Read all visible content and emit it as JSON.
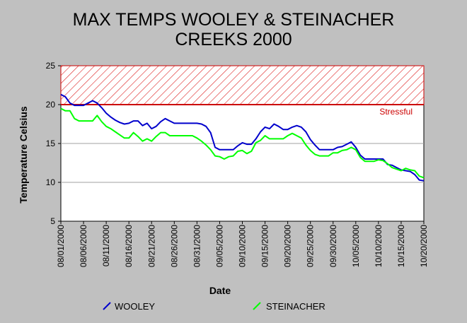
{
  "chart_data": {
    "type": "line",
    "title_lines": [
      "MAX TEMPS WOOLEY & STEINACHER",
      "CREEKS 2000"
    ],
    "xlabel": "Date",
    "ylabel": "Temperature Celsius",
    "ylim": [
      5,
      25
    ],
    "yticks": [
      "5",
      "10",
      "15",
      "20",
      "25"
    ],
    "xticks": [
      "08/01/2000",
      "08/06/2000",
      "08/11/2000",
      "08/16/2000",
      "08/21/2000",
      "08/26/2000",
      "08/31/2000",
      "09/05/2000",
      "09/10/2000",
      "09/15/2000",
      "09/20/2000",
      "09/25/2000",
      "09/30/2000",
      "10/05/2000",
      "10/10/2000",
      "10/15/2000",
      "10/20/2000"
    ],
    "x_start": "08/01/2000",
    "x_end": "10/20/2000",
    "grid": "horizontal",
    "threshold": {
      "label": "Stressful",
      "from": 20,
      "to": 25,
      "color": "#cc0000"
    },
    "x_dates": [
      "08/01/2000",
      "08/02/2000",
      "08/03/2000",
      "08/04/2000",
      "08/05/2000",
      "08/06/2000",
      "08/07/2000",
      "08/08/2000",
      "08/09/2000",
      "08/10/2000",
      "08/11/2000",
      "08/12/2000",
      "08/13/2000",
      "08/14/2000",
      "08/15/2000",
      "08/16/2000",
      "08/17/2000",
      "08/18/2000",
      "08/19/2000",
      "08/20/2000",
      "08/21/2000",
      "08/22/2000",
      "08/23/2000",
      "08/24/2000",
      "08/25/2000",
      "08/26/2000",
      "08/27/2000",
      "08/28/2000",
      "08/29/2000",
      "08/30/2000",
      "08/31/2000",
      "09/01/2000",
      "09/02/2000",
      "09/03/2000",
      "09/04/2000",
      "09/05/2000",
      "09/06/2000",
      "09/07/2000",
      "09/08/2000",
      "09/09/2000",
      "09/10/2000",
      "09/11/2000",
      "09/12/2000",
      "09/13/2000",
      "09/14/2000",
      "09/15/2000",
      "09/16/2000",
      "09/17/2000",
      "09/18/2000",
      "09/19/2000",
      "09/20/2000",
      "09/21/2000",
      "09/22/2000",
      "09/23/2000",
      "09/24/2000",
      "09/25/2000",
      "09/26/2000",
      "09/27/2000",
      "09/28/2000",
      "09/29/2000",
      "09/30/2000",
      "10/01/2000",
      "10/02/2000",
      "10/03/2000",
      "10/04/2000",
      "10/05/2000",
      "10/06/2000",
      "10/07/2000",
      "10/08/2000",
      "10/09/2000",
      "10/10/2000",
      "10/11/2000",
      "10/12/2000",
      "10/13/2000",
      "10/14/2000",
      "10/15/2000",
      "10/16/2000",
      "10/17/2000",
      "10/18/2000",
      "10/19/2000",
      "10/20/2000"
    ],
    "series": [
      {
        "name": "WOOLEY",
        "color": "#0000cc",
        "values": [
          21.3,
          21.0,
          20.2,
          19.9,
          19.9,
          19.9,
          20.2,
          20.5,
          20.2,
          19.6,
          18.9,
          18.4,
          18.0,
          17.7,
          17.5,
          17.6,
          17.9,
          17.9,
          17.3,
          17.6,
          16.9,
          17.2,
          17.8,
          18.2,
          17.9,
          17.6,
          17.6,
          17.6,
          17.6,
          17.6,
          17.6,
          17.5,
          17.2,
          16.4,
          14.5,
          14.2,
          14.2,
          14.2,
          14.2,
          14.7,
          15.1,
          14.9,
          14.9,
          15.6,
          16.5,
          17.1,
          16.9,
          17.5,
          17.2,
          16.8,
          16.8,
          17.1,
          17.3,
          17.1,
          16.5,
          15.5,
          14.8,
          14.2,
          14.2,
          14.2,
          14.2,
          14.5,
          14.6,
          14.9,
          15.2,
          14.5,
          13.5,
          13.0,
          13.0,
          13.0,
          13.0,
          13.0,
          12.3,
          12.2,
          11.9,
          11.6,
          11.5,
          11.4,
          11.0,
          10.3,
          10.2
        ]
      },
      {
        "name": "STEINACHER",
        "color": "#00ff00",
        "values": [
          19.5,
          19.2,
          19.2,
          18.2,
          17.9,
          17.9,
          17.9,
          17.9,
          18.6,
          17.8,
          17.2,
          16.9,
          16.5,
          16.1,
          15.7,
          15.7,
          16.4,
          15.9,
          15.3,
          15.6,
          15.3,
          15.9,
          16.4,
          16.4,
          16.0,
          16.0,
          16.0,
          16.0,
          16.0,
          16.0,
          15.7,
          15.3,
          14.8,
          14.2,
          13.4,
          13.3,
          13.0,
          13.3,
          13.4,
          14.0,
          14.1,
          13.7,
          14.0,
          15.1,
          15.4,
          16.0,
          15.6,
          15.6,
          15.6,
          15.6,
          16.0,
          16.3,
          16.0,
          15.7,
          14.8,
          14.1,
          13.6,
          13.4,
          13.4,
          13.4,
          13.8,
          13.8,
          14.1,
          14.2,
          14.5,
          14.2,
          13.2,
          12.7,
          12.7,
          12.7,
          12.9,
          12.8,
          12.4,
          11.9,
          11.7,
          11.5,
          11.8,
          11.6,
          11.5,
          10.8,
          10.6
        ]
      }
    ]
  }
}
